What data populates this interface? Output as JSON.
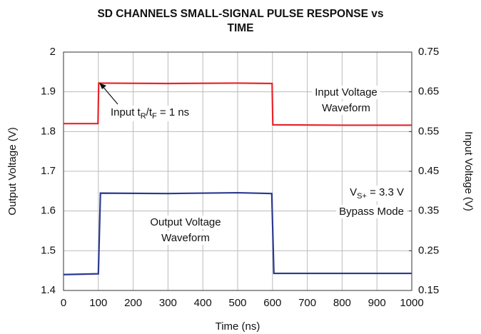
{
  "chart_data": {
    "type": "line",
    "title": [
      "SD CHANNELS SMALL-SIGNAL PULSE RESPONSE vs",
      "TIME"
    ],
    "xlabel": "Time (ns)",
    "ylabel": "Output Voltage (V)",
    "y2label": "Input Voltage (V)",
    "xlim": [
      0,
      1000
    ],
    "xticks": [
      0,
      100,
      200,
      300,
      400,
      500,
      600,
      700,
      800,
      900,
      1000
    ],
    "ylim": [
      1.4,
      2
    ],
    "yticks": [
      1.4,
      1.5,
      1.6,
      1.7,
      1.8,
      1.9,
      2
    ],
    "y2lim": [
      0.15,
      0.75
    ],
    "y2ticks": [
      0.15,
      0.25,
      0.35,
      0.45,
      0.55,
      0.65,
      0.75
    ],
    "grid": true,
    "series": [
      {
        "color": "#e8242c",
        "axis": "y2",
        "x": [
          0,
          99,
          101,
          300,
          500,
          599,
          601,
          800,
          1000
        ],
        "values": [
          0.57,
          0.57,
          0.672,
          0.671,
          0.672,
          0.671,
          0.567,
          0.566,
          0.566
        ]
      },
      {
        "color": "#2b3990",
        "x": [
          0,
          100,
          106,
          300,
          500,
          598,
          604,
          800,
          1000
        ],
        "values": [
          1.44,
          1.442,
          1.645,
          1.644,
          1.646,
          1.644,
          1.443,
          1.443,
          1.443
        ]
      }
    ],
    "annotations": [
      {
        "parts": [
          "Input t",
          "R",
          "/t",
          "F",
          " = 1 ns"
        ]
      },
      {
        "parts": [
          "Input Voltage"
        ]
      },
      {
        "parts": [
          "Waveform"
        ]
      },
      {
        "parts": [
          "V",
          "S+",
          " = 3.3 V"
        ]
      },
      {
        "parts": [
          "Bypass Mode"
        ]
      },
      {
        "parts": [
          "Output Voltage"
        ]
      },
      {
        "parts": [
          "Waveform"
        ]
      }
    ]
  }
}
